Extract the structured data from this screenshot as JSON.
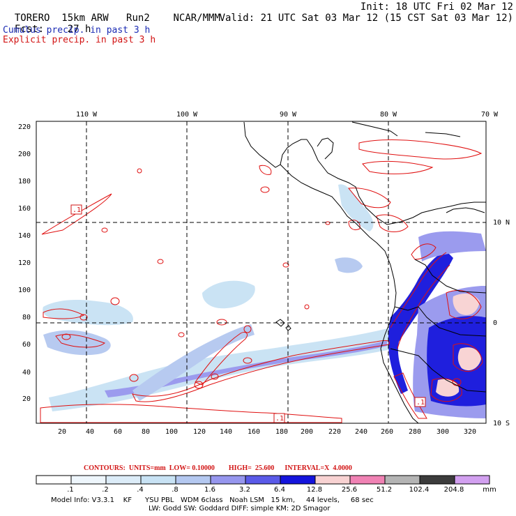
{
  "header": {
    "model": "TORERO",
    "resolution": "15km ARW",
    "run": "Run2",
    "org": "NCAR/MMM",
    "init": "Init: 18 UTC Fri 02 Mar 12",
    "fcst_label": "Fcst:",
    "fcst_value": "27 h",
    "valid": "Valid: 21 UTC Sat 03 Mar 12 (15 CST Sat 03 Mar 12)",
    "cumulus_title": "Cumulus precip. in past 3 h",
    "explicit_title": "Explicit precip. in past 3 h"
  },
  "map": {
    "lon_labels": [
      "110 W",
      "100 W",
      "90 W",
      "80 W",
      "70 W"
    ],
    "lat_labels": [
      "10 N",
      "0",
      "10 S"
    ],
    "x_ticks": [
      "20",
      "40",
      "60",
      "80",
      "100",
      "120",
      "140",
      "160",
      "180",
      "200",
      "220",
      "240",
      "260",
      "280",
      "300",
      "320"
    ],
    "y_ticks": [
      "20",
      "40",
      "60",
      "80",
      "100",
      "120",
      "140",
      "160",
      "180",
      "200",
      "220"
    ],
    "low_markers": [
      ".1",
      ".1",
      ".1"
    ],
    "colors": {
      "coast": "#000000",
      "explicit_contour": "#e01010",
      "cumulus_fill": "#3a3af0"
    }
  },
  "contours": {
    "text": "CONTOURS:  UNITS=mm  LOW= 0.10000        HIGH=  25.600      INTERVAL=X  4.0000"
  },
  "colorbar": {
    "labels": [
      ".1",
      ".2",
      ".4",
      ".8",
      "1.6",
      "3.2",
      "6.4",
      "12.8",
      "25.6",
      "51.2",
      "102.4",
      "204.8"
    ],
    "unit": "mm",
    "colors": [
      "#ffffff",
      "#eef6fc",
      "#dcecf8",
      "#c8e2f4",
      "#b4c8f0",
      "#9696ee",
      "#5a5ae8",
      "#1414dc",
      "#f8d2d2",
      "#f082b4",
      "#b4b4b4",
      "#3c3c3c",
      "#d2a0f0"
    ]
  },
  "footer": {
    "line1": "Model Info: V3.3.1    KF      YSU PBL   WDM 6class   Noah LSM   15 km,     44 levels,     68 sec",
    "line2": "LW: Godd SW: Goddard DIFF: simple KM: 2D Smagor"
  }
}
